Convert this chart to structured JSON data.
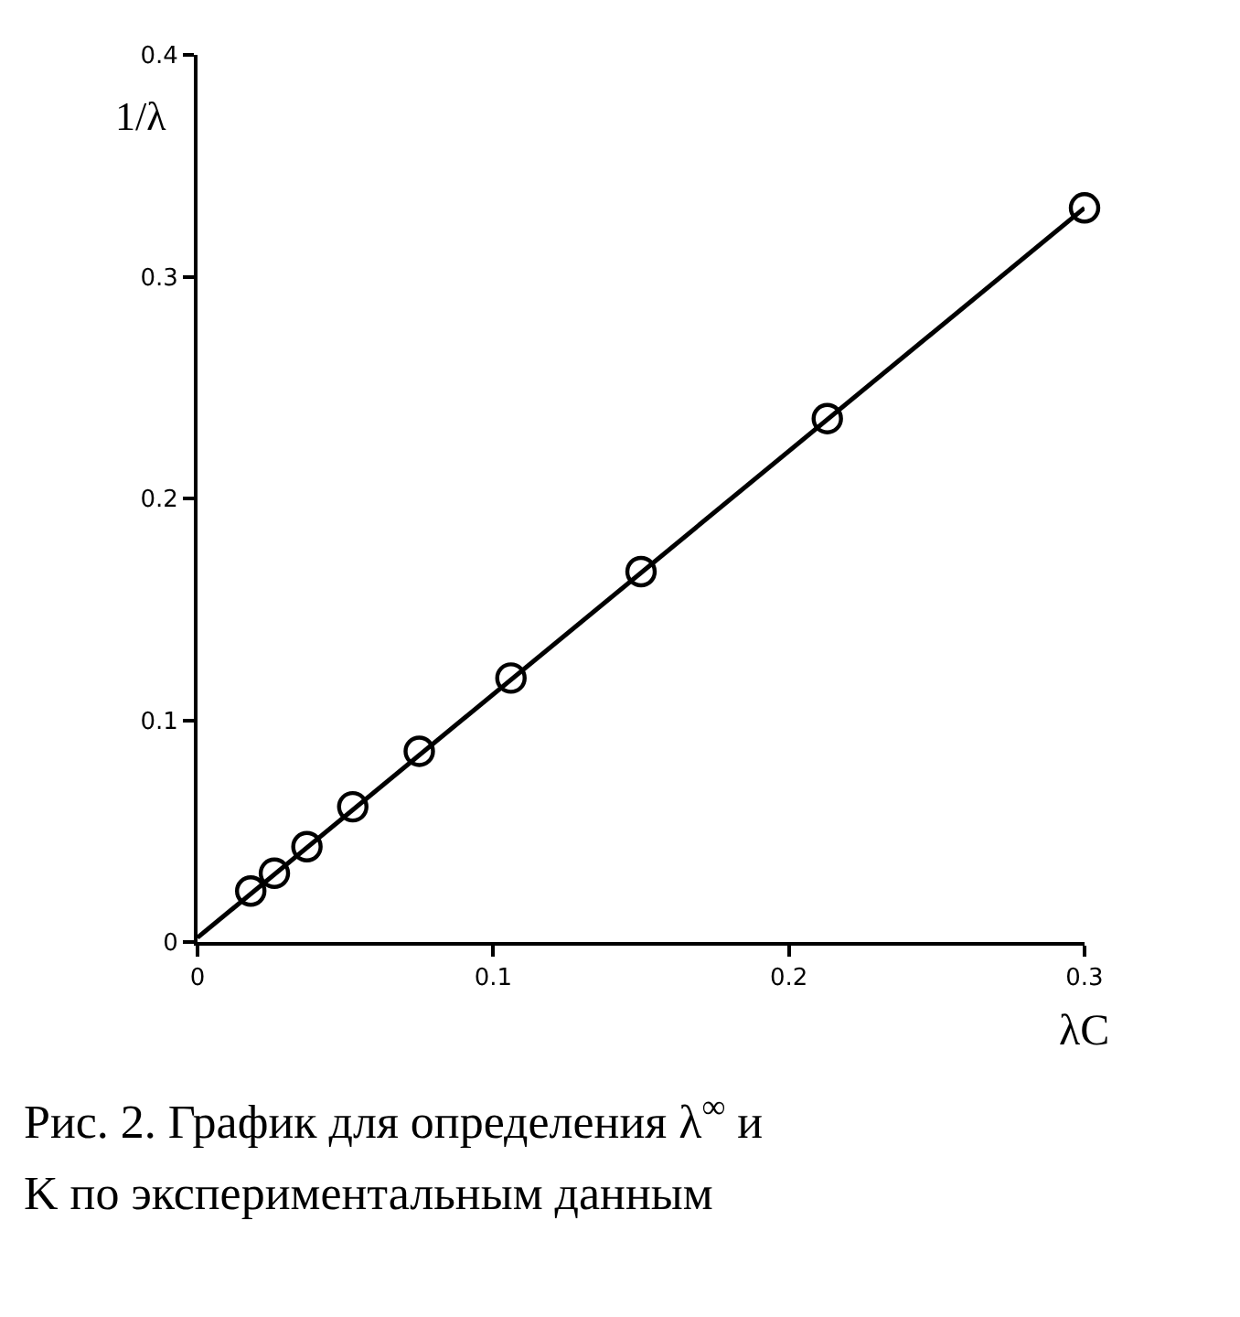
{
  "chart_data": {
    "type": "scatter",
    "xlabel": "λC",
    "ylabel": "1/λ",
    "annotations": [
      "Рис. 2. График для определения λ$^{∞}$ и",
      "K по экспериментальным данным"
    ],
    "x": [
      0.018,
      0.026,
      0.037,
      0.0525,
      0.075,
      0.106,
      0.15,
      0.213,
      0.3
    ],
    "series": [
      {
        "color": "#000000",
        "marker": "circle",
        "values": [
          0.023,
          0.031,
          0.043,
          0.061,
          0.086,
          0.119,
          0.167,
          0.236,
          0.331
        ]
      },
      {
        "type": "line",
        "color": "#000000",
        "x": [
          0,
          0.3
        ],
        "values": [
          0.002,
          0.331
        ]
      }
    ],
    "xlim": [
      0,
      0.3
    ],
    "ylim": [
      0,
      0.4
    ],
    "xticks": [
      0,
      0.1,
      0.2,
      0.3
    ],
    "yticks": [
      0,
      0.1,
      0.2,
      0.3,
      0.4
    ],
    "grid": false,
    "legend": false
  }
}
